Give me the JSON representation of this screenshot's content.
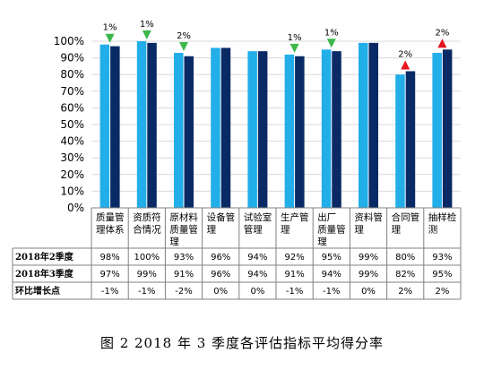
{
  "caption": "图 2  2018 年 3 季度各评估指标平均得分率",
  "colors": {
    "q2": "#22AEE8",
    "q3": "#0A2A66",
    "down": "#3CB84A",
    "up": "#E8141E",
    "grid": "#D9D9D9",
    "axis": "#808080"
  },
  "chart_data": {
    "type": "bar",
    "title": "",
    "xlabel": "",
    "ylabel": "",
    "ylim": [
      0,
      100
    ],
    "yticks": [
      "0%",
      "10%",
      "20%",
      "30%",
      "40%",
      "50%",
      "60%",
      "70%",
      "80%",
      "90%",
      "100%"
    ],
    "categories": [
      [
        "质量管",
        "理体系"
      ],
      [
        "资质符",
        "合情况"
      ],
      [
        "原材料",
        "质量管",
        "理"
      ],
      [
        "设备管",
        "理"
      ],
      [
        "试验室",
        "管理"
      ],
      [
        "生产管",
        "理"
      ],
      [
        "出厂",
        "质量管",
        "理"
      ],
      [
        "资料管",
        "理"
      ],
      [
        "合同管",
        "理"
      ],
      [
        "抽样检",
        "测"
      ]
    ],
    "series": [
      {
        "name": "2018年2季度",
        "values": [
          98,
          100,
          93,
          96,
          94,
          92,
          95,
          99,
          80,
          93
        ],
        "labels": [
          "98%",
          "100%",
          "93%",
          "96%",
          "94%",
          "92%",
          "95%",
          "99%",
          "80%",
          "93%"
        ]
      },
      {
        "name": "2018年3季度",
        "values": [
          97,
          99,
          91,
          96,
          94,
          91,
          94,
          99,
          82,
          95
        ],
        "labels": [
          "97%",
          "99%",
          "91%",
          "96%",
          "94%",
          "91%",
          "94%",
          "99%",
          "82%",
          "95%"
        ]
      }
    ],
    "change": {
      "name": "环比增长点",
      "values": [
        -1,
        -1,
        -2,
        0,
        0,
        -1,
        -1,
        0,
        2,
        2
      ],
      "labels": [
        "-1%",
        "-1%",
        "-2%",
        "0%",
        "0%",
        "-1%",
        "-1%",
        "0%",
        "2%",
        "2%"
      ],
      "annotations": [
        "1%",
        "1%",
        "2%",
        "",
        "",
        "1%",
        "1%",
        "",
        "2%",
        "2%"
      ],
      "direction": [
        "down",
        "down",
        "down",
        "",
        "",
        "down",
        "down",
        "",
        "up",
        "up"
      ]
    }
  }
}
